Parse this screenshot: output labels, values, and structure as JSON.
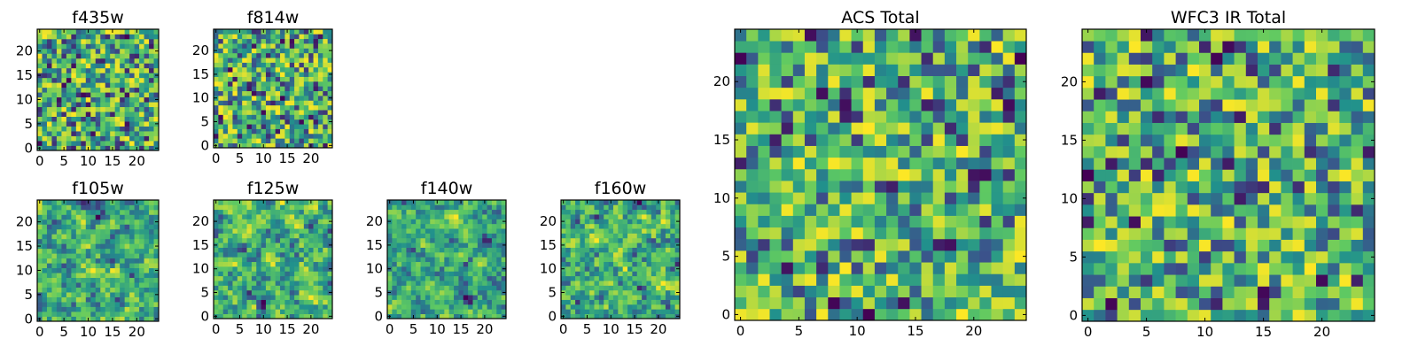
{
  "figure": {
    "colormap": "viridis",
    "colormap_stops": [
      "#440154",
      "#3b528b",
      "#21918c",
      "#5ec962",
      "#fde725"
    ]
  },
  "chart_data": [
    {
      "type": "heatmap",
      "title": "f435w",
      "grid_size": 25,
      "xlim": [
        0,
        24
      ],
      "ylim": [
        0,
        24
      ],
      "xticks": [
        "0",
        "5",
        "10",
        "15",
        "20"
      ],
      "yticks": [
        "0",
        "5",
        "10",
        "15",
        "20"
      ],
      "seed": 11,
      "smoothing": 0
    },
    {
      "type": "heatmap",
      "title": "f814w",
      "grid_size": 25,
      "xlim": [
        0,
        24
      ],
      "ylim": [
        0,
        24
      ],
      "xticks": [
        "0",
        "5",
        "10",
        "15",
        "20"
      ],
      "yticks": [
        "0",
        "5",
        "10",
        "15",
        "20"
      ],
      "seed": 23,
      "smoothing": 0
    },
    {
      "type": "heatmap",
      "title": "f105w",
      "grid_size": 25,
      "xlim": [
        0,
        24
      ],
      "ylim": [
        0,
        24
      ],
      "xticks": [
        "0",
        "5",
        "10",
        "15",
        "20"
      ],
      "yticks": [
        "0",
        "5",
        "10",
        "15",
        "20"
      ],
      "seed": 37,
      "smoothing": 1
    },
    {
      "type": "heatmap",
      "title": "f125w",
      "grid_size": 25,
      "xlim": [
        0,
        24
      ],
      "ylim": [
        0,
        24
      ],
      "xticks": [
        "0",
        "5",
        "10",
        "15",
        "20"
      ],
      "yticks": [
        "0",
        "5",
        "10",
        "15",
        "20"
      ],
      "seed": 41,
      "smoothing": 1
    },
    {
      "type": "heatmap",
      "title": "f140w",
      "grid_size": 25,
      "xlim": [
        0,
        24
      ],
      "ylim": [
        0,
        24
      ],
      "xticks": [
        "0",
        "5",
        "10",
        "15",
        "20"
      ],
      "yticks": [
        "0",
        "5",
        "10",
        "15",
        "20"
      ],
      "seed": 53,
      "smoothing": 1
    },
    {
      "type": "heatmap",
      "title": "f160w",
      "grid_size": 25,
      "xlim": [
        0,
        24
      ],
      "ylim": [
        0,
        24
      ],
      "xticks": [
        "0",
        "5",
        "10",
        "15",
        "20"
      ],
      "yticks": [
        "0",
        "5",
        "10",
        "15",
        "20"
      ],
      "seed": 67,
      "smoothing": 1
    },
    {
      "type": "heatmap",
      "title": "ACS Total",
      "grid_size": 25,
      "xlim": [
        0,
        24
      ],
      "ylim": [
        0,
        24
      ],
      "xticks": [
        "0",
        "5",
        "10",
        "15",
        "20"
      ],
      "yticks": [
        "0",
        "5",
        "10",
        "15",
        "20"
      ],
      "seed": 79,
      "smoothing": 0
    },
    {
      "type": "heatmap",
      "title": "WFC3 IR Total",
      "grid_size": 25,
      "xlim": [
        0,
        24
      ],
      "ylim": [
        0,
        24
      ],
      "xticks": [
        "0",
        "5",
        "10",
        "15",
        "20"
      ],
      "yticks": [
        "0",
        "5",
        "10",
        "15",
        "20"
      ],
      "seed": 97,
      "smoothing": 0
    }
  ]
}
